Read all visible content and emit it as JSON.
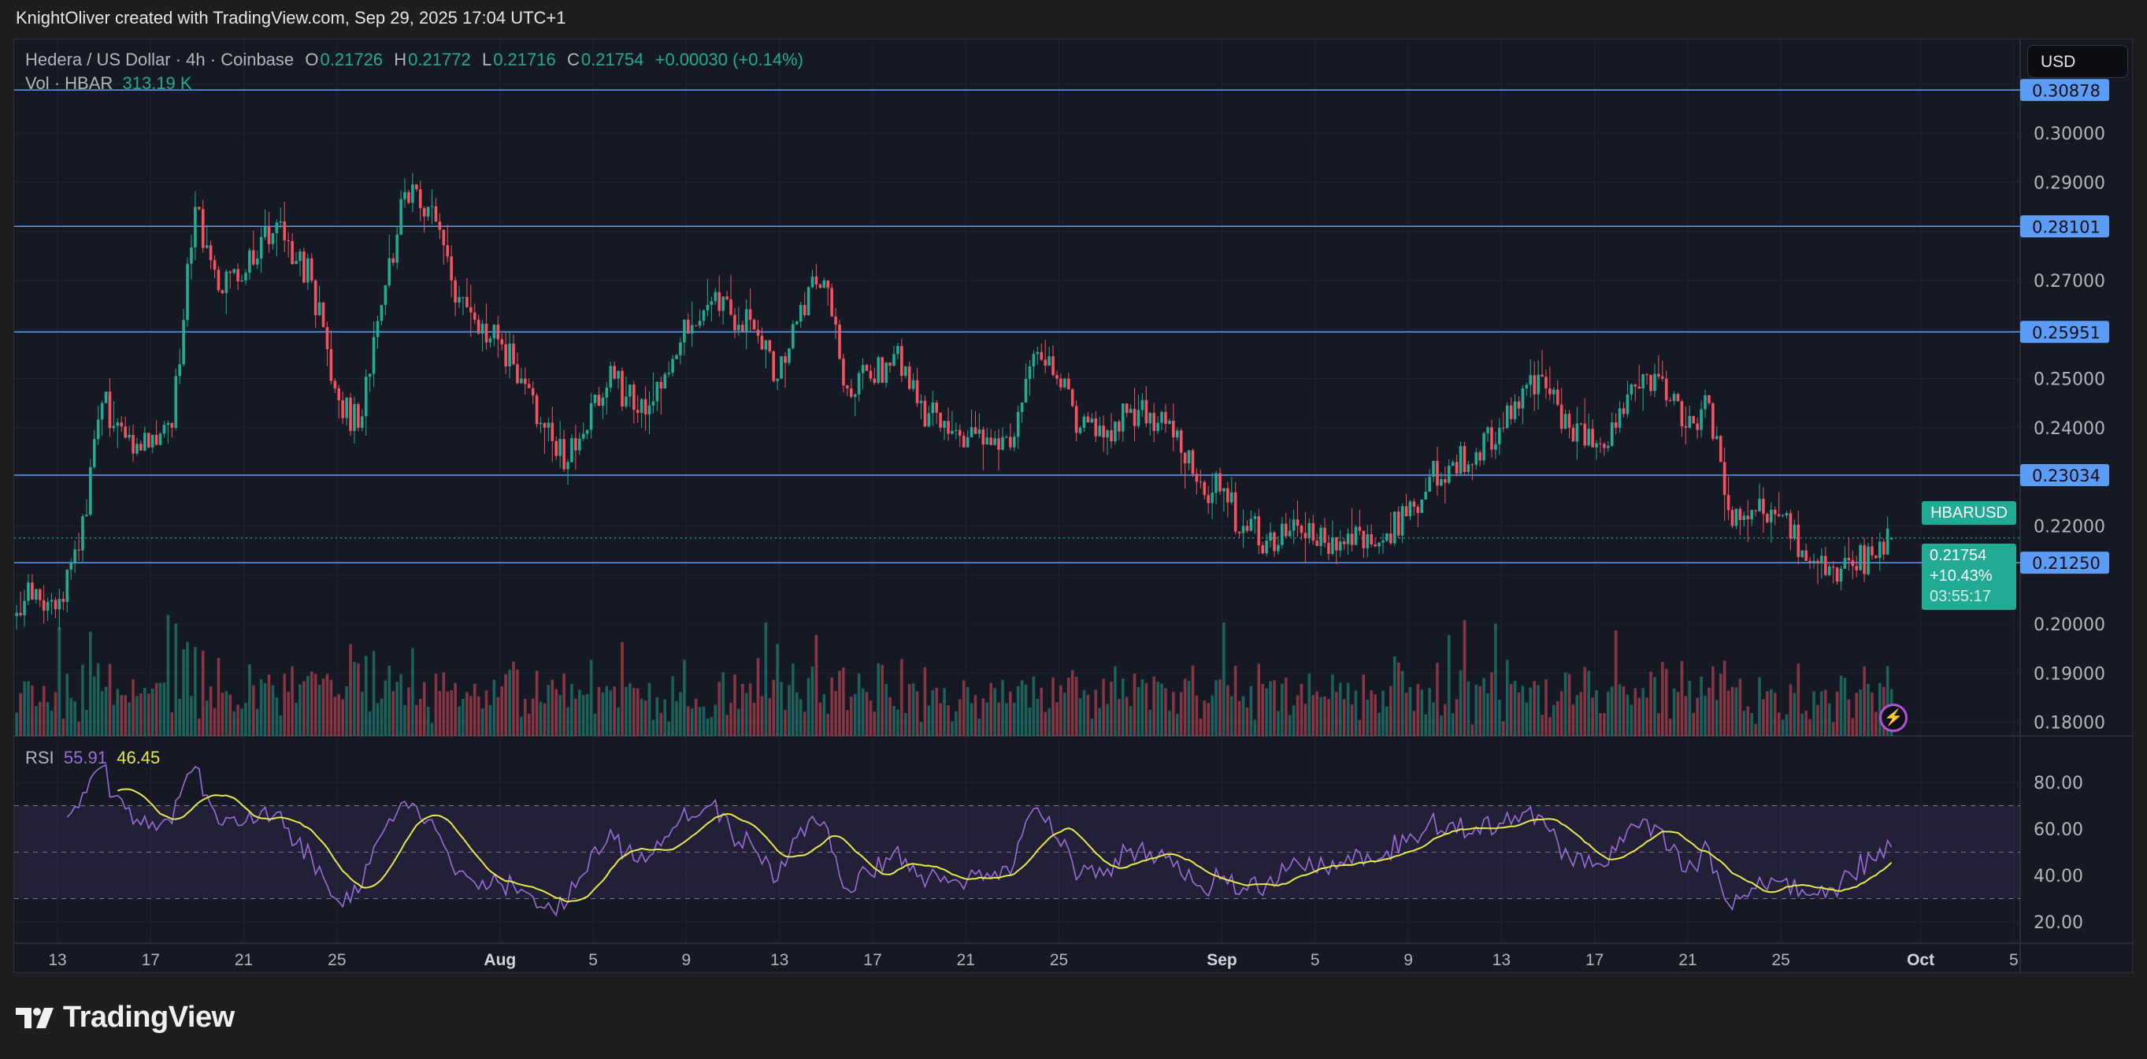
{
  "header": {
    "credit": "KnightOliver created with TradingView.com, Sep 29, 2025 17:04 UTC+1"
  },
  "legend": {
    "symbol": "Hedera / US Dollar · 4h · Coinbase",
    "o_label": "O",
    "o": "0.21726",
    "h_label": "H",
    "h": "0.21772",
    "l_label": "L",
    "l": "0.21716",
    "c_label": "C",
    "c": "0.21754",
    "change": "+0.00030 (+0.14%)",
    "vol_label": "Vol · HBAR",
    "vol": "313.19 K"
  },
  "currency": "USD",
  "rsi_legend": {
    "label": "RSI",
    "value": "55.91",
    "ma": "46.45"
  },
  "price_tag": {
    "symbol": "HBARUSD",
    "price": "0.21754",
    "change": "+10.43%",
    "countdown": "03:55:17"
  },
  "footer": {
    "logo": "TradingView"
  },
  "colors": {
    "up": "#22ab94",
    "down": "#f7525f",
    "level": "#5b9cf6",
    "rsi": "#9b6cd8",
    "rsi_ma": "#e8e84a"
  },
  "chart_data": {
    "type": "candlestick",
    "interval": "4h",
    "ylim": [
      0.175,
      0.3115
    ],
    "price_ticks": [
      "0.30000",
      "0.29000",
      "0.27000",
      "0.25000",
      "0.24000",
      "0.22000",
      "0.20000",
      "0.19000",
      "0.18000"
    ],
    "levels": [
      "0.30878",
      "0.28101",
      "0.25951",
      "0.23034",
      "0.21250"
    ],
    "current_price": 0.21754,
    "time_ticks": [
      {
        "label": "13",
        "date": "2025-07-13"
      },
      {
        "label": "17",
        "date": "2025-07-17"
      },
      {
        "label": "21",
        "date": "2025-07-21"
      },
      {
        "label": "25",
        "date": "2025-07-25"
      },
      {
        "label": "Aug",
        "date": "2025-08-01",
        "bold": true
      },
      {
        "label": "5",
        "date": "2025-08-05"
      },
      {
        "label": "9",
        "date": "2025-08-09"
      },
      {
        "label": "13",
        "date": "2025-08-13"
      },
      {
        "label": "17",
        "date": "2025-08-17"
      },
      {
        "label": "21",
        "date": "2025-08-21"
      },
      {
        "label": "25",
        "date": "2025-08-25"
      },
      {
        "label": "Sep",
        "date": "2025-09-01",
        "bold": true
      },
      {
        "label": "5",
        "date": "2025-09-05"
      },
      {
        "label": "9",
        "date": "2025-09-09"
      },
      {
        "label": "13",
        "date": "2025-09-13"
      },
      {
        "label": "17",
        "date": "2025-09-17"
      },
      {
        "label": "21",
        "date": "2025-09-21"
      },
      {
        "label": "25",
        "date": "2025-09-25"
      },
      {
        "label": "Oct",
        "date": "2025-10-01",
        "bold": true
      },
      {
        "label": "5",
        "date": "2025-10-05"
      }
    ],
    "daily_start": "2025-07-11",
    "daily_open_first": 0.205,
    "daily_close": [
      0.205,
      0.203,
      0.215,
      0.245,
      0.238,
      0.236,
      0.24,
      0.285,
      0.268,
      0.27,
      0.281,
      0.278,
      0.27,
      0.248,
      0.24,
      0.265,
      0.288,
      0.285,
      0.27,
      0.262,
      0.258,
      0.25,
      0.24,
      0.233,
      0.245,
      0.25,
      0.243,
      0.248,
      0.262,
      0.265,
      0.263,
      0.26,
      0.25,
      0.265,
      0.27,
      0.248,
      0.25,
      0.255,
      0.245,
      0.24,
      0.236,
      0.238,
      0.236,
      0.255,
      0.25,
      0.24,
      0.238,
      0.243,
      0.243,
      0.238,
      0.229,
      0.227,
      0.22,
      0.217,
      0.219,
      0.217,
      0.215,
      0.219,
      0.217,
      0.222,
      0.23,
      0.233,
      0.235,
      0.24,
      0.248,
      0.248,
      0.24,
      0.236,
      0.24,
      0.248,
      0.25,
      0.24,
      0.245,
      0.22,
      0.223,
      0.222,
      0.215,
      0.21,
      0.213,
      0.214,
      0.2175
    ],
    "last_candle": {
      "o": 0.21726,
      "h": 0.21772,
      "l": 0.21716,
      "c": 0.21754
    },
    "rsi_ticks": [
      "80.00",
      "60.00",
      "40.00",
      "20.00"
    ],
    "rsi_bands": [
      70,
      50,
      30
    ],
    "rsi_period": 14
  }
}
